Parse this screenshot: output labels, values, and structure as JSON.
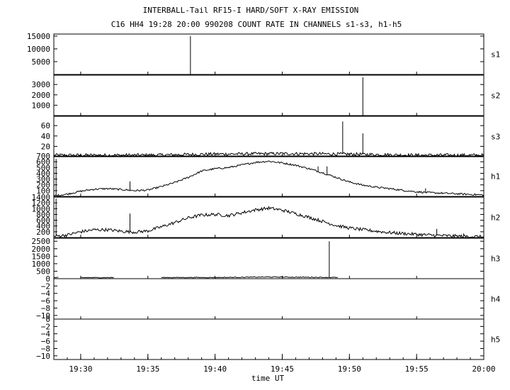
{
  "chart_data": {
    "type": "line",
    "title": "INTERBALL-Tail RF15-I HARD/SOFT X-RAY EMISSION",
    "subtitle": "C16 HH4 19:28 20:00 990208  COUNT RATE IN CHANNELS s1-s3, h1-h5",
    "xlabel": "time UT",
    "x_ticks": [
      "19:30",
      "19:35",
      "19:40",
      "19:45",
      "19:50",
      "19:55",
      "20:00"
    ],
    "xlim": [
      "19:28",
      "20:00"
    ],
    "panels": [
      {
        "name": "s1",
        "ylim": [
          0,
          15800
        ],
        "yticks": [
          "5000",
          "10000",
          "15000"
        ],
        "baseline": 0,
        "noise": 0,
        "trend": [],
        "spikes": [
          [
            "19:38:10",
            15000
          ]
        ]
      },
      {
        "name": "s2",
        "ylim": [
          0,
          3900
        ],
        "yticks": [
          "1000",
          "2000",
          "3000"
        ],
        "baseline": 0,
        "noise": 0,
        "trend": [],
        "spikes": [
          [
            "19:51:00",
            3700
          ]
        ]
      },
      {
        "name": "s3",
        "ylim": [
          0,
          78
        ],
        "yticks": [
          "20",
          "40",
          "60"
        ],
        "baseline": 2,
        "noise": 3,
        "trend": [
          [
            "19:28",
            3
          ],
          [
            "19:35",
            3
          ],
          [
            "19:40",
            5
          ],
          [
            "19:45",
            6
          ],
          [
            "19:50",
            5
          ],
          [
            "19:55",
            3
          ],
          [
            "20:00",
            3
          ]
        ],
        "spikes": [
          [
            "19:49:30",
            68
          ],
          [
            "19:51:00",
            45
          ]
        ]
      },
      {
        "name": "h1",
        "ylim": [
          0,
          700
        ],
        "yticks": [
          "100",
          "200",
          "300",
          "400",
          "500",
          "600",
          "700"
        ],
        "baseline": 0,
        "noise": 15,
        "trend": [
          [
            "19:28",
            10
          ],
          [
            "19:29",
            40
          ],
          [
            "19:30",
            90
          ],
          [
            "19:31",
            125
          ],
          [
            "19:32",
            135
          ],
          [
            "19:33",
            120
          ],
          [
            "19:34",
            100
          ],
          [
            "19:35",
            110
          ],
          [
            "19:36",
            170
          ],
          [
            "19:37",
            240
          ],
          [
            "19:38",
            330
          ],
          [
            "19:39",
            440
          ],
          [
            "19:40",
            480
          ],
          [
            "19:41",
            500
          ],
          [
            "19:42",
            545
          ],
          [
            "19:43",
            590
          ],
          [
            "19:44",
            610
          ],
          [
            "19:45",
            580
          ],
          [
            "19:46",
            540
          ],
          [
            "19:47",
            480
          ],
          [
            "19:48",
            410
          ],
          [
            "19:49",
            330
          ],
          [
            "19:50",
            250
          ],
          [
            "19:51",
            195
          ],
          [
            "19:52",
            160
          ],
          [
            "19:53",
            135
          ],
          [
            "19:54",
            105
          ],
          [
            "19:55",
            80
          ],
          [
            "19:56",
            65
          ],
          [
            "19:57",
            55
          ],
          [
            "19:58",
            45
          ],
          [
            "19:59",
            35
          ],
          [
            "20:00",
            25
          ]
        ],
        "spikes": [
          [
            "19:28:10",
            650
          ],
          [
            "19:33:40",
            260
          ],
          [
            "19:47:40",
            520
          ],
          [
            "19:48:20",
            520
          ],
          [
            "19:55:40",
            140
          ]
        ]
      },
      {
        "name": "h2",
        "ylim": [
          0,
          1400
        ],
        "yticks": [
          "200",
          "400",
          "600",
          "800",
          "1000",
          "1200",
          "1400"
        ],
        "baseline": 0,
        "noise": 55,
        "trend": [
          [
            "19:28",
            40
          ],
          [
            "19:29",
            90
          ],
          [
            "19:30",
            200
          ],
          [
            "19:31",
            270
          ],
          [
            "19:32",
            270
          ],
          [
            "19:33",
            220
          ],
          [
            "19:34",
            190
          ],
          [
            "19:35",
            230
          ],
          [
            "19:36",
            370
          ],
          [
            "19:37",
            520
          ],
          [
            "19:38",
            680
          ],
          [
            "19:39",
            780
          ],
          [
            "19:40",
            800
          ],
          [
            "19:41",
            760
          ],
          [
            "19:42",
            860
          ],
          [
            "19:43",
            960
          ],
          [
            "19:44",
            1020
          ],
          [
            "19:45",
            950
          ],
          [
            "19:46",
            830
          ],
          [
            "19:47",
            700
          ],
          [
            "19:48",
            560
          ],
          [
            "19:49",
            420
          ],
          [
            "19:50",
            330
          ],
          [
            "19:51",
            270
          ],
          [
            "19:52",
            220
          ],
          [
            "19:53",
            170
          ],
          [
            "19:54",
            140
          ],
          [
            "19:55",
            110
          ],
          [
            "19:56",
            85
          ],
          [
            "19:57",
            65
          ],
          [
            "19:58",
            50
          ],
          [
            "19:59",
            35
          ],
          [
            "20:00",
            25
          ]
        ],
        "spikes": [
          [
            "19:28:10",
            1350
          ],
          [
            "19:33:40",
            830
          ],
          [
            "19:56:30",
            300
          ],
          [
            "19:58:30",
            140
          ]
        ]
      },
      {
        "name": "h3",
        "ylim": [
          0,
          2700
        ],
        "yticks": [
          "500",
          "1000",
          "1500",
          "2000",
          "2500"
        ],
        "baseline": 60,
        "noise": 25,
        "segments": [
          [
            "19:28:00",
            "19:28:20"
          ],
          [
            "19:30:00",
            "19:32:30"
          ],
          [
            "19:36:00",
            "19:49:10"
          ]
        ],
        "trend": [
          [
            "19:28",
            70
          ],
          [
            "19:40",
            80
          ],
          [
            "19:44",
            110
          ],
          [
            "19:48",
            90
          ],
          [
            "19:50",
            70
          ]
        ],
        "spikes": [
          [
            "19:48:30",
            2500
          ]
        ]
      },
      {
        "name": "h4",
        "ylim": [
          -11,
          0
        ],
        "yticks": [
          "−10",
          "−8",
          "−6",
          "−4",
          "−2",
          "0"
        ],
        "baseline": 0,
        "noise": 0,
        "trend": [],
        "spikes": []
      },
      {
        "name": "h5",
        "ylim": [
          -11,
          0
        ],
        "yticks": [
          "−10",
          "−8",
          "−6",
          "−4",
          "−2",
          "0"
        ],
        "baseline": 0,
        "noise": 0,
        "trend": [],
        "spikes": []
      }
    ],
    "grid": false,
    "legend": "none"
  }
}
